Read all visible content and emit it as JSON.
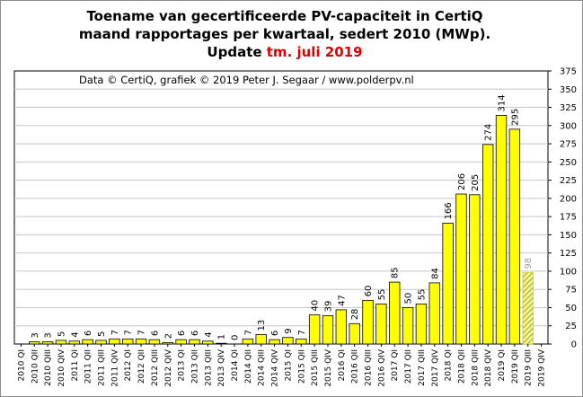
{
  "chart_data": {
    "type": "bar",
    "title_lines": [
      "Toename van gecertificeerde PV-capaciteit  in CertiQ",
      "maand rapportages per kwartaal, sedert 2010 (MWp)."
    ],
    "update_prefix": "Update ",
    "update_highlight": "tm.  juli  2019",
    "credit": "Data © CertiQ, grafiek © 2019 Peter J. Segaar / www.polderpv.nl",
    "ylim": [
      0,
      375
    ],
    "yticks": [
      0,
      25,
      50,
      75,
      100,
      125,
      150,
      175,
      200,
      225,
      250,
      275,
      300,
      325,
      350,
      375
    ],
    "categories": [
      "2010 QI",
      "2010 QII",
      "2010 QIII",
      "2010 QIV",
      "2011 QI",
      "2011 QII",
      "2011 QIII",
      "2011 QIV",
      "2012 QI",
      "2012 QII",
      "2012 QIII",
      "2012 QIV",
      "2013 QI",
      "2013 QII",
      "2013 QIII",
      "2013 QIV",
      "2014 QI",
      "2014 QII",
      "2014 QIII",
      "2014 QIV",
      "2015 QI",
      "2015 QII",
      "2015 QIII",
      "2015 QIV",
      "2016 QI",
      "2016 QII",
      "2016 QIII",
      "2016 QIV",
      "2017 QI",
      "2017 QII",
      "2017 QIII",
      "2017 QIV",
      "2018 QI",
      "2018 QII",
      "2018 QIII",
      "2018 QIV",
      "2019 QI",
      "2019 QII",
      "2019 QIII",
      "2019 QIV"
    ],
    "values": [
      null,
      3,
      3,
      5,
      4,
      6,
      5,
      7,
      7,
      7,
      6,
      2,
      6,
      6,
      4,
      1,
      0,
      7,
      13,
      6,
      9,
      7,
      40,
      39,
      47,
      28,
      60,
      55,
      85,
      50,
      55,
      84,
      166,
      206,
      205,
      274,
      314,
      295,
      98,
      null
    ],
    "partial_index": 38,
    "colors": {
      "bar": "#ffff00",
      "partial_bar": "#d4d400",
      "border": "#000000",
      "grid": "#c8c8c8",
      "partial_label": "#a0a0a0"
    }
  }
}
